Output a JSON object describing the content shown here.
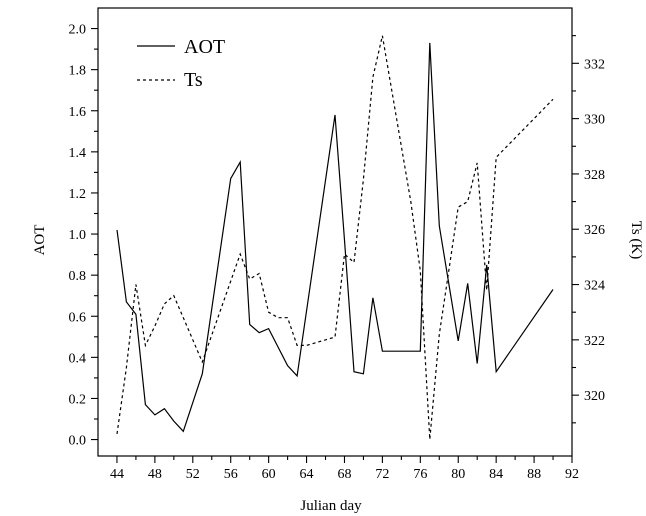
{
  "chart_data": {
    "type": "line",
    "xlabel": "Julian day",
    "ylabel_left": "AOT",
    "ylabel_right": "Ts (K)",
    "xlim": [
      42,
      92
    ],
    "ylim_left": [
      -0.08,
      2.1
    ],
    "ylim_right": [
      317.8,
      334.0
    ],
    "x_ticks": [
      44,
      48,
      52,
      56,
      60,
      64,
      68,
      72,
      76,
      80,
      84,
      88,
      92
    ],
    "y_left_ticks": [
      "0.0",
      "0.2",
      "0.4",
      "0.6",
      "0.8",
      "1.0",
      "1.2",
      "1.4",
      "1.6",
      "1.8",
      "2.0"
    ],
    "y_right_ticks": [
      "320",
      "322",
      "324",
      "326",
      "328",
      "330",
      "332"
    ],
    "legend": {
      "position": "top-left",
      "entries": [
        "AOT",
        "Ts"
      ]
    },
    "series": [
      {
        "name": "AOT",
        "axis": "left",
        "style": "solid",
        "x": [
          44,
          45,
          46,
          47,
          48,
          49,
          50,
          51,
          53,
          56,
          57,
          58,
          59,
          60,
          62,
          63,
          67,
          68,
          69,
          70,
          71,
          72,
          76,
          77,
          78,
          80,
          81,
          82,
          83,
          84,
          90
        ],
        "y": [
          1.02,
          0.67,
          0.61,
          0.17,
          0.12,
          0.15,
          0.09,
          0.04,
          0.32,
          1.27,
          1.35,
          0.56,
          0.52,
          0.54,
          0.36,
          0.31,
          1.58,
          0.97,
          0.33,
          0.32,
          0.69,
          0.43,
          0.43,
          1.93,
          1.04,
          0.48,
          0.76,
          0.37,
          0.85,
          0.33,
          0.73
        ]
      },
      {
        "name": "Ts",
        "axis": "right",
        "style": "dashed",
        "x": [
          44,
          45,
          46,
          47,
          48,
          49,
          50,
          51,
          53,
          57,
          58,
          59,
          60,
          61,
          62,
          63,
          64,
          67,
          68,
          69,
          70,
          71,
          72,
          75,
          76,
          77,
          78,
          79,
          80,
          81,
          82,
          83,
          84,
          90
        ],
        "y": [
          318.6,
          321.0,
          324.0,
          321.8,
          322.5,
          323.3,
          323.6,
          322.8,
          321.2,
          325.1,
          324.2,
          324.4,
          323.0,
          322.8,
          322.8,
          321.8,
          321.8,
          322.1,
          325.1,
          324.8,
          327.8,
          331.5,
          333.0,
          327.0,
          324.5,
          318.4,
          322.2,
          324.5,
          326.8,
          327.0,
          328.4,
          323.8,
          328.6,
          330.7
        ]
      }
    ]
  }
}
